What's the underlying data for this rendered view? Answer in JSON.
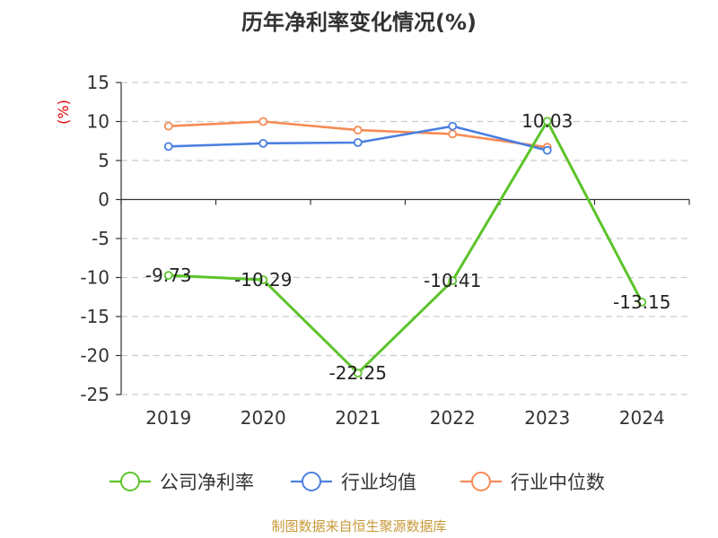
{
  "chart_data": {
    "type": "line",
    "title": "历年净利率变化情况(%)",
    "ylabel": "(%)",
    "xlabel": "",
    "categories": [
      "2019",
      "2020",
      "2021",
      "2022",
      "2023",
      "2024"
    ],
    "ylim": [
      -25,
      15
    ],
    "yticks": [
      15,
      10,
      5,
      0,
      -5,
      -10,
      -15,
      -20,
      -25
    ],
    "grid": true,
    "legend_position": "bottom",
    "series": [
      {
        "name": "公司净利率",
        "color": "#5cc42a",
        "values": [
          -9.73,
          -10.29,
          -22.25,
          -10.41,
          10.03,
          -13.15
        ],
        "labels": [
          "-9.73",
          "-10.29",
          "-22.25",
          "-10.41",
          "10.03",
          "-13.15"
        ]
      },
      {
        "name": "行业均值",
        "color": "#4a7fe0",
        "values": [
          6.8,
          7.2,
          7.3,
          9.4,
          6.3,
          null
        ]
      },
      {
        "name": "行业中位数",
        "color": "#f78b56",
        "values": [
          9.4,
          10.0,
          8.9,
          8.4,
          6.7,
          null
        ]
      }
    ]
  },
  "source_note": "制图数据来自恒生聚源数据库"
}
